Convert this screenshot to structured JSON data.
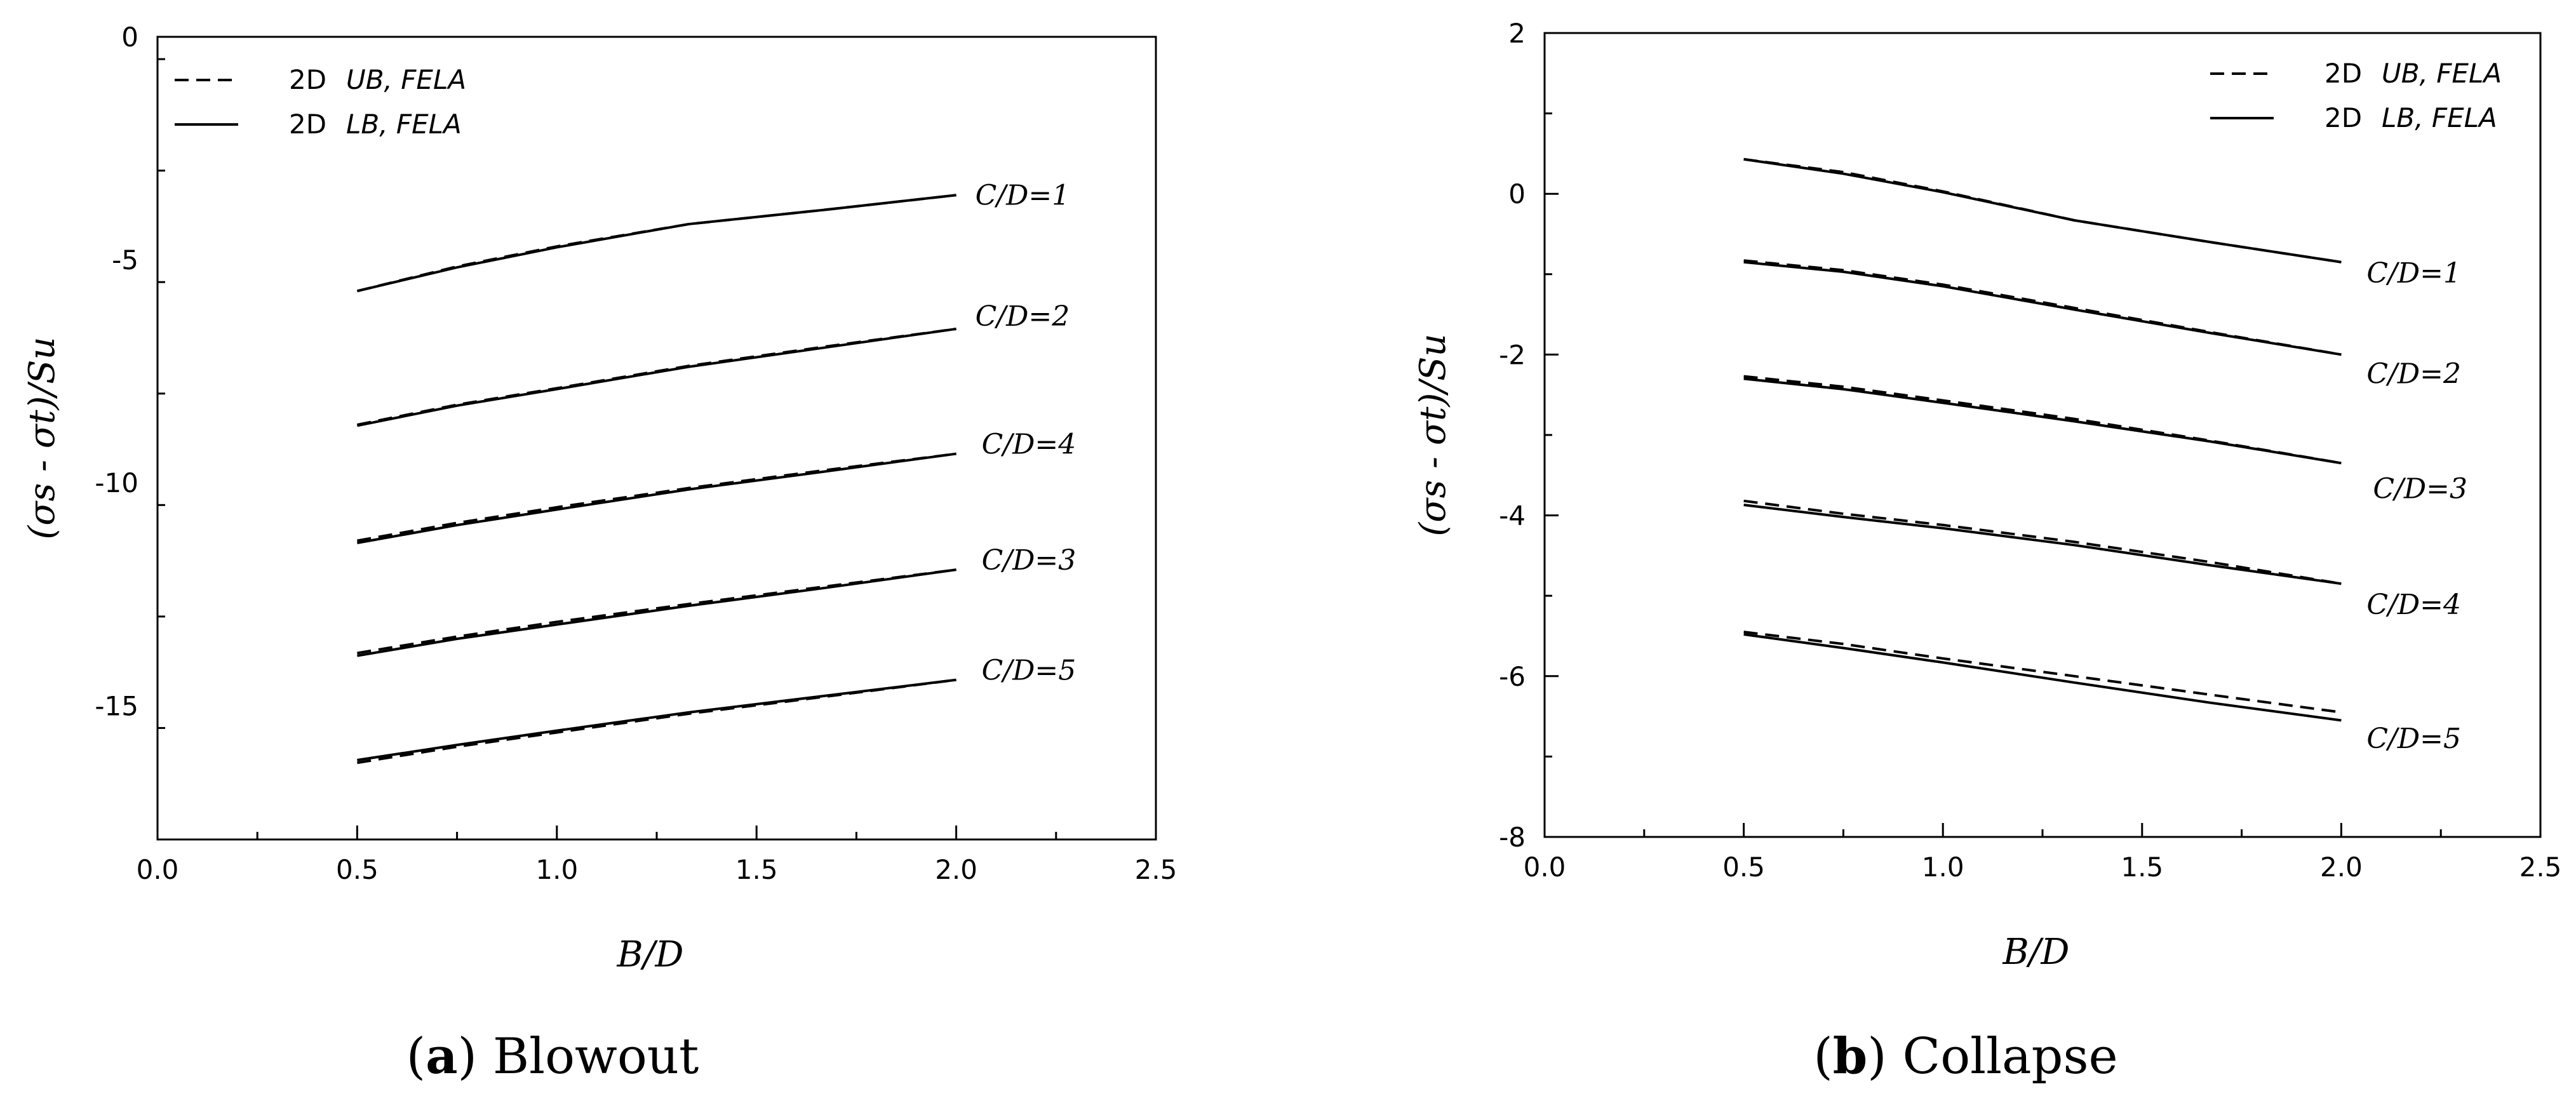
{
  "legend": {
    "ub": {
      "prefix": "2D",
      "label": "UB, FELA"
    },
    "lb": {
      "prefix": "2D",
      "label": "LB, FELA"
    }
  },
  "chart_data": [
    {
      "type": "line",
      "caption": {
        "letter": "a",
        "text": "Blowout"
      },
      "xlabel": "B/D",
      "ylabel": "(σs - σt)/Su",
      "xlim": [
        0.0,
        2.5
      ],
      "ylim": [
        -18,
        0
      ],
      "xticks": [
        0.0,
        0.5,
        1.0,
        1.5,
        2.0,
        2.5
      ],
      "xtick_labels": [
        "0.0",
        "0.5",
        "1.0",
        "1.5",
        "2.0",
        "2.5"
      ],
      "yticks": [
        0,
        -5,
        -10,
        -15
      ],
      "ytick_labels": [
        "0",
        "-5",
        "-10",
        "-15"
      ],
      "legend_position": "top-left",
      "series": [
        {
          "label": "C/D=1",
          "x": [
            0.5,
            0.75,
            1.0,
            1.33,
            1.67,
            2.0
          ],
          "ub": [
            -5.7,
            -5.15,
            -4.7,
            -4.2,
            -3.88,
            -3.55
          ],
          "lb": [
            -5.7,
            -5.17,
            -4.72,
            -4.2,
            -3.88,
            -3.55
          ]
        },
        {
          "label": "C/D=2",
          "x": [
            0.5,
            0.75,
            1.0,
            1.33,
            1.67,
            2.0
          ],
          "ub": [
            -8.7,
            -8.25,
            -7.88,
            -7.38,
            -6.95,
            -6.55
          ],
          "lb": [
            -8.72,
            -8.27,
            -7.9,
            -7.4,
            -6.97,
            -6.55
          ]
        },
        {
          "label": "C/D=4",
          "x": [
            0.5,
            0.75,
            1.0,
            1.33,
            1.67,
            2.0
          ],
          "ub": [
            -11.3,
            -10.9,
            -10.55,
            -10.12,
            -9.72,
            -9.35
          ],
          "lb": [
            -11.35,
            -10.95,
            -10.6,
            -10.15,
            -9.75,
            -9.35
          ]
        },
        {
          "label": "C/D=3",
          "x": [
            0.5,
            0.75,
            1.0,
            1.33,
            1.67,
            2.0
          ],
          "ub": [
            -13.82,
            -13.45,
            -13.12,
            -12.72,
            -12.33,
            -11.95
          ],
          "lb": [
            -13.88,
            -13.5,
            -13.18,
            -12.76,
            -12.36,
            -11.95
          ]
        },
        {
          "label": "C/D=5",
          "x": [
            0.5,
            0.75,
            1.0,
            1.33,
            1.67,
            2.0
          ],
          "ub": [
            -16.28,
            -15.92,
            -15.6,
            -15.18,
            -14.8,
            -14.42
          ],
          "lb": [
            -16.22,
            -15.88,
            -15.56,
            -15.15,
            -14.78,
            -14.42
          ]
        }
      ]
    },
    {
      "type": "line",
      "caption": {
        "letter": "b",
        "text": "Collapse"
      },
      "xlabel": "B/D",
      "ylabel": "(σs - σt)/Su",
      "xlim": [
        0.0,
        2.5
      ],
      "ylim": [
        -8,
        2
      ],
      "xticks": [
        0.0,
        0.5,
        1.0,
        1.5,
        2.0,
        2.5
      ],
      "xtick_labels": [
        "0.0",
        "0.5",
        "1.0",
        "1.5",
        "2.0",
        "2.5"
      ],
      "yticks": [
        2,
        0,
        -2,
        -4,
        -6,
        -8
      ],
      "ytick_labels": [
        "2",
        "0",
        "-2",
        "-4",
        "-6",
        "-8"
      ],
      "legend_position": "top-right",
      "series": [
        {
          "label": "C/D=1",
          "x": [
            0.5,
            0.75,
            1.0,
            1.33,
            1.67,
            2.0
          ],
          "ub": [
            0.43,
            0.27,
            0.03,
            -0.33,
            -0.6,
            -0.85
          ],
          "lb": [
            0.43,
            0.25,
            0.02,
            -0.33,
            -0.6,
            -0.85
          ]
        },
        {
          "label": "C/D=2",
          "x": [
            0.5,
            0.75,
            1.0,
            1.33,
            1.67,
            2.0
          ],
          "ub": [
            -0.83,
            -0.95,
            -1.13,
            -1.42,
            -1.72,
            -2.0
          ],
          "lb": [
            -0.85,
            -0.97,
            -1.15,
            -1.44,
            -1.73,
            -2.0
          ]
        },
        {
          "label": "C/D=3",
          "x": [
            0.5,
            0.75,
            1.0,
            1.33,
            1.67,
            2.0
          ],
          "ub": [
            -2.27,
            -2.4,
            -2.57,
            -2.8,
            -3.07,
            -3.35
          ],
          "lb": [
            -2.3,
            -2.43,
            -2.6,
            -2.83,
            -3.08,
            -3.35
          ]
        },
        {
          "label": "C/D=4",
          "x": [
            0.5,
            0.75,
            1.0,
            1.33,
            1.67,
            2.0
          ],
          "ub": [
            -3.82,
            -3.98,
            -4.12,
            -4.33,
            -4.58,
            -4.85
          ],
          "lb": [
            -3.87,
            -4.02,
            -4.16,
            -4.37,
            -4.62,
            -4.85
          ]
        },
        {
          "label": "C/D=5",
          "x": [
            0.5,
            0.75,
            1.0,
            1.33,
            1.67,
            2.0
          ],
          "ub": [
            -5.45,
            -5.6,
            -5.78,
            -6.0,
            -6.23,
            -6.45
          ],
          "lb": [
            -5.48,
            -5.65,
            -5.83,
            -6.08,
            -6.33,
            -6.55
          ]
        }
      ]
    }
  ]
}
